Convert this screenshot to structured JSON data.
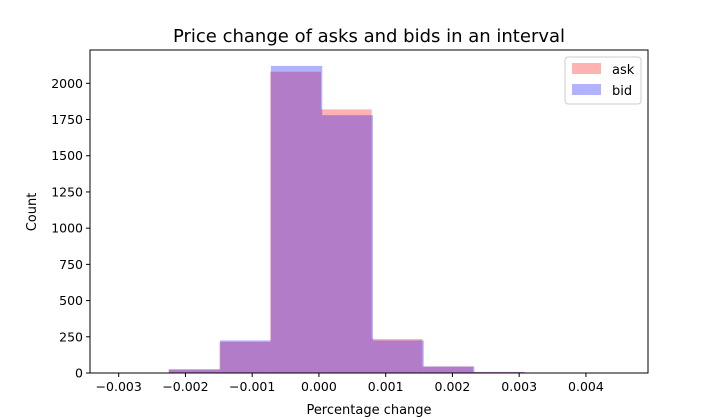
{
  "chart_data": {
    "type": "histogram",
    "title": "Price change of asks and bids in an interval",
    "xlabel": "Percentage change",
    "ylabel": "Count",
    "xlim": [
      -0.00343,
      0.00493
    ],
    "ylim": [
      0,
      2230
    ],
    "x_ticks": [
      {
        "value": -0.003,
        "label": "−0.003"
      },
      {
        "value": -0.002,
        "label": "−0.002"
      },
      {
        "value": -0.001,
        "label": "−0.001"
      },
      {
        "value": 0.0,
        "label": "0.000"
      },
      {
        "value": 0.001,
        "label": "0.001"
      },
      {
        "value": 0.002,
        "label": "0.002"
      },
      {
        "value": 0.003,
        "label": "0.003"
      },
      {
        "value": 0.004,
        "label": "0.004"
      }
    ],
    "y_ticks": [
      {
        "value": 0,
        "label": "0"
      },
      {
        "value": 250,
        "label": "250"
      },
      {
        "value": 500,
        "label": "500"
      },
      {
        "value": 750,
        "label": "750"
      },
      {
        "value": 1000,
        "label": "1000"
      },
      {
        "value": 1250,
        "label": "1250"
      },
      {
        "value": 1500,
        "label": "1500"
      },
      {
        "value": 1750,
        "label": "1750"
      },
      {
        "value": 2000,
        "label": "2000"
      }
    ],
    "legend_position": "top-right",
    "grid": false,
    "series": [
      {
        "name": "ask",
        "color": "#ff0000",
        "alpha": 0.3,
        "bin_edges": [
          -0.00225,
          -0.00149,
          -0.00073,
          3e-05,
          0.00079,
          0.00155,
          0.00231,
          0.00307,
          0.00383
        ],
        "counts": [
          25,
          215,
          2080,
          1820,
          235,
          45,
          8,
          3
        ]
      },
      {
        "name": "bid",
        "color": "#0000ff",
        "alpha": 0.3,
        "bin_edges": [
          -0.00225,
          -0.00148,
          -0.00072,
          5e-05,
          0.00081,
          0.00157,
          0.00233,
          0.00309,
          0.00385
        ],
        "counts": [
          25,
          225,
          2120,
          1780,
          225,
          45,
          6,
          2
        ]
      }
    ]
  }
}
